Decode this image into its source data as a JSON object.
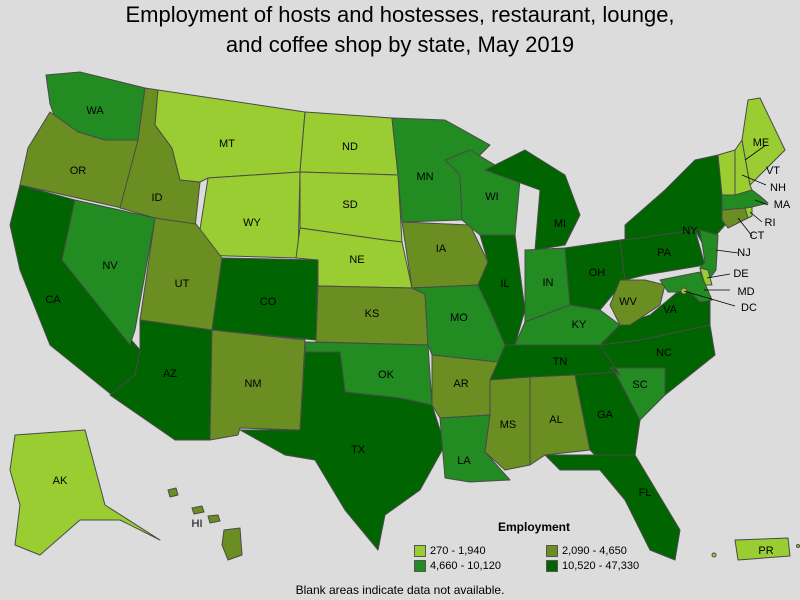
{
  "title": {
    "line1": "Employment of hosts and hostesses, restaurant, lounge,",
    "line2": "and coffee shop by state, May 2019"
  },
  "legend": {
    "title": "Employment",
    "bins": [
      {
        "label": "270 - 1,940",
        "color": "#9acd32"
      },
      {
        "label": "2,090 - 4,650",
        "color": "#6b8e23"
      },
      {
        "label": "4,660 - 10,120",
        "color": "#228b22"
      },
      {
        "label": "10,520 - 47,330",
        "color": "#006400"
      }
    ]
  },
  "footnote": "Blank areas indicate data not available.",
  "states": {
    "WA": {
      "label": "WA",
      "bin": 2
    },
    "OR": {
      "label": "OR",
      "bin": 1
    },
    "CA": {
      "label": "CA",
      "bin": 3
    },
    "NV": {
      "label": "NV",
      "bin": 2
    },
    "ID": {
      "label": "ID",
      "bin": 1
    },
    "MT": {
      "label": "MT",
      "bin": 0
    },
    "WY": {
      "label": "WY",
      "bin": 0
    },
    "UT": {
      "label": "UT",
      "bin": 1
    },
    "AZ": {
      "label": "AZ",
      "bin": 3
    },
    "CO": {
      "label": "CO",
      "bin": 3
    },
    "NM": {
      "label": "NM",
      "bin": 1
    },
    "ND": {
      "label": "ND",
      "bin": 0
    },
    "SD": {
      "label": "SD",
      "bin": 0
    },
    "NE": {
      "label": "NE",
      "bin": 0
    },
    "KS": {
      "label": "KS",
      "bin": 1
    },
    "OK": {
      "label": "OK",
      "bin": 2
    },
    "TX": {
      "label": "TX",
      "bin": 3
    },
    "MN": {
      "label": "MN",
      "bin": 2
    },
    "IA": {
      "label": "IA",
      "bin": 1
    },
    "MO": {
      "label": "MO",
      "bin": 2
    },
    "AR": {
      "label": "AR",
      "bin": 1
    },
    "LA": {
      "label": "LA",
      "bin": 2
    },
    "WI": {
      "label": "WI",
      "bin": 2
    },
    "IL": {
      "label": "IL",
      "bin": 3
    },
    "MI": {
      "label": "MI",
      "bin": 3
    },
    "IN": {
      "label": "IN",
      "bin": 2
    },
    "OH": {
      "label": "OH",
      "bin": 3
    },
    "KY": {
      "label": "KY",
      "bin": 2
    },
    "TN": {
      "label": "TN",
      "bin": 3
    },
    "MS": {
      "label": "MS",
      "bin": 1
    },
    "AL": {
      "label": "AL",
      "bin": 1
    },
    "GA": {
      "label": "GA",
      "bin": 3
    },
    "FL": {
      "label": "FL",
      "bin": 3
    },
    "SC": {
      "label": "SC",
      "bin": 2
    },
    "NC": {
      "label": "NC",
      "bin": 3
    },
    "VA": {
      "label": "VA",
      "bin": 3
    },
    "WV": {
      "label": "WV",
      "bin": 1
    },
    "PA": {
      "label": "PA",
      "bin": 3
    },
    "NY": {
      "label": "NY",
      "bin": 3
    },
    "NJ": {
      "label": "NJ",
      "bin": 2
    },
    "DE": {
      "label": "DE",
      "bin": 0
    },
    "MD": {
      "label": "MD",
      "bin": 2
    },
    "DC": {
      "label": "DC",
      "bin": 0
    },
    "CT": {
      "label": "CT",
      "bin": 1
    },
    "RI": {
      "label": "RI",
      "bin": 0
    },
    "MA": {
      "label": "MA",
      "bin": 2
    },
    "VT": {
      "label": "VT",
      "bin": 0
    },
    "NH": {
      "label": "NH",
      "bin": 0
    },
    "ME": {
      "label": "ME",
      "bin": 0
    },
    "AK": {
      "label": "AK",
      "bin": 0
    },
    "HI": {
      "label": "HI",
      "bin": 1
    },
    "PR": {
      "label": "PR",
      "bin": 0
    }
  }
}
